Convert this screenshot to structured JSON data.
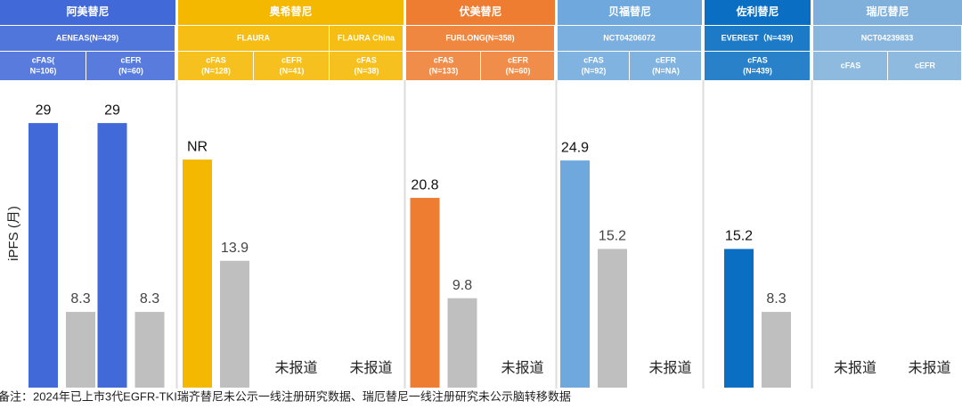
{
  "chart_data": {
    "type": "bar",
    "ylabel": "iPFS (月)",
    "ylim": [
      0,
      33.7
    ],
    "control_color": "#bfbfbf",
    "footnote": "备注：2024年已上市3代EGFR-TKI瑞齐替尼未公示一线注册研究数据、瑞厄替尼一线注册研究未公示脑转移数据",
    "groups": [
      {
        "name": "阿美替尼",
        "color": "#4169d8",
        "trials": [
          {
            "name": "AENEAS(N=429)",
            "arms": [
              {
                "name": [
                  "cFAS(",
                  "N=106)"
                ],
                "values": [
                  29,
                  8.3
                ]
              },
              {
                "name": [
                  "cEFR",
                  "(N=60)"
                ],
                "values": [
                  29,
                  8.3
                ]
              }
            ]
          }
        ]
      },
      {
        "name": "奥希替尼",
        "color": "#f5b800",
        "trials": [
          {
            "name": "FLAURA",
            "arms": [
              {
                "name": [
                  "cFAS",
                  "(N=128)"
                ],
                "values": [
                  25,
                  13.9
                ],
                "value_labels": [
                  "NR",
                  "13.9"
                ]
              },
              {
                "name": [
                  "cEFR",
                  "(N=41)"
                ],
                "values": [
                  null,
                  null
                ],
                "note": "未报道"
              }
            ]
          },
          {
            "name": "FLAURA China",
            "arms": [
              {
                "name": [
                  "cFAS",
                  "(N=38)"
                ],
                "values": [
                  null,
                  null
                ],
                "note": "未报道"
              }
            ]
          }
        ]
      },
      {
        "name": "伏美替尼",
        "color": "#ee7d31",
        "trials": [
          {
            "name": "FURLONG(N=358)",
            "arms": [
              {
                "name": [
                  "cFAS",
                  "(N=133)"
                ],
                "values": [
                  20.8,
                  9.8
                ]
              },
              {
                "name": [
                  "cEFR",
                  "(N=60)"
                ],
                "values": [
                  null,
                  null
                ],
                "note": "未报道"
              }
            ]
          }
        ]
      },
      {
        "name": "贝福替尼",
        "color": "#6fa8dc",
        "trials": [
          {
            "name": "NCT04206072",
            "arms": [
              {
                "name": [
                  "cFAS",
                  "(N=92)"
                ],
                "values": [
                  24.9,
                  15.2
                ]
              },
              {
                "name": [
                  "cEFR",
                  "(N=NA)"
                ],
                "values": [
                  null,
                  null
                ],
                "note": "未报道"
              }
            ]
          }
        ]
      },
      {
        "name": "佐利替尼",
        "color": "#0a6fc2",
        "trials": [
          {
            "name": "EVEREST（N=439)",
            "arms": [
              {
                "name": [
                  "cFAS",
                  "(N=439)"
                ],
                "values": [
                  15.2,
                  8.3
                ]
              }
            ]
          }
        ]
      },
      {
        "name": "瑞厄替尼",
        "color": "#7fb0dc",
        "trials": [
          {
            "name": "NCT04239833",
            "arms": [
              {
                "name": [
                  "cFAS"
                ],
                "values": [
                  null,
                  null
                ],
                "note": "未报道"
              },
              {
                "name": [
                  "cEFR"
                ],
                "values": [
                  null,
                  null
                ],
                "note": "未报道"
              }
            ]
          }
        ]
      }
    ]
  }
}
